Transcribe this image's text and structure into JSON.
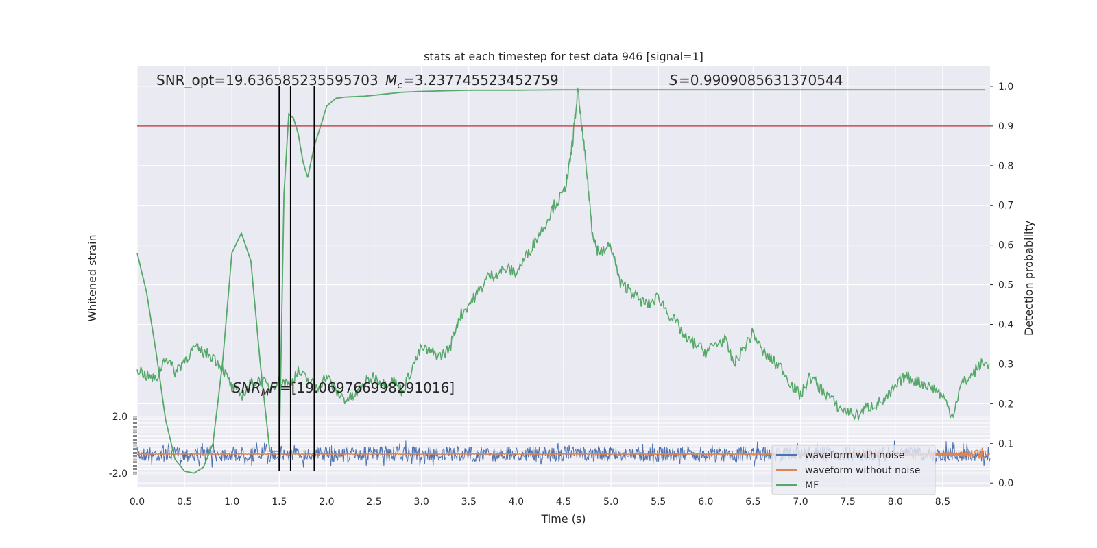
{
  "chart_data": {
    "type": "line",
    "title": "stats at each timestep for test data 946 [signal=1]",
    "xlabel": "Time (s)",
    "ylabel_left": "Whitened strain",
    "ylabel_right": "Detection probability",
    "xlim": [
      0,
      9
    ],
    "ylim_right": [
      -0.01,
      1.05
    ],
    "x_ticks": [
      "0.0",
      "0.5",
      "1.0",
      "1.5",
      "2.0",
      "2.5",
      "3.0",
      "3.5",
      "4.0",
      "4.5",
      "5.0",
      "5.5",
      "6.0",
      "6.5",
      "7.0",
      "7.5",
      "8.0",
      "8.5"
    ],
    "y_ticks_right": [
      "0.0",
      "0.1",
      "0.2",
      "0.3",
      "0.4",
      "0.5",
      "0.6",
      "0.7",
      "0.8",
      "0.9",
      "1.0"
    ],
    "left_axis_tick_labels": [
      "2.0",
      "-2.0"
    ],
    "grid": true,
    "legend_position": "lower-right",
    "annotations": {
      "snr_opt": "SNR_opt=19.636585235595703",
      "mc": "=3.237745523452759",
      "s": "=0.9909085631370544",
      "snr_mf": "=[19.069766998291016]"
    },
    "threshold": 0.9,
    "vertical_lines": [
      1.5,
      1.62,
      1.87
    ],
    "series": [
      {
        "name": "waveform with noise",
        "color": "#4c72b0"
      },
      {
        "name": "waveform without noise",
        "color": "#dd8452"
      },
      {
        "name": "MF",
        "color": "#55a868"
      }
    ],
    "prob_coarse": {
      "x": [
        0.0,
        0.1,
        0.2,
        0.3,
        0.4,
        0.5,
        0.6,
        0.7,
        0.8,
        0.9,
        1.0,
        1.1,
        1.2,
        1.3,
        1.4,
        1.5,
        1.55,
        1.6,
        1.65,
        1.7,
        1.75,
        1.8,
        1.87,
        1.95,
        2.0,
        2.1,
        2.2,
        2.4,
        2.6,
        2.8,
        3.0,
        3.5,
        4.0,
        4.5,
        5.0,
        6.0,
        7.0,
        8.0,
        8.95
      ],
      "y": [
        0.58,
        0.48,
        0.33,
        0.16,
        0.06,
        0.03,
        0.025,
        0.04,
        0.1,
        0.3,
        0.58,
        0.63,
        0.56,
        0.3,
        0.08,
        0.08,
        0.73,
        0.93,
        0.92,
        0.88,
        0.81,
        0.77,
        0.85,
        0.91,
        0.95,
        0.97,
        0.973,
        0.975,
        0.98,
        0.985,
        0.987,
        0.99,
        0.99,
        0.991,
        0.991,
        0.991,
        0.991,
        0.991,
        0.991
      ]
    },
    "prob_fine": {
      "x": [
        0.0,
        0.1,
        0.2,
        0.3,
        0.4,
        0.5,
        0.6,
        0.7,
        0.8,
        0.9,
        1.0,
        1.1,
        1.2,
        1.3,
        1.4,
        1.5,
        1.6,
        1.7,
        1.8,
        1.9,
        2.0,
        2.1,
        2.2,
        2.3,
        2.4,
        2.5,
        2.6,
        2.7,
        2.8,
        2.9,
        3.0,
        3.1,
        3.2,
        3.3,
        3.4,
        3.5,
        3.6,
        3.7,
        3.8,
        3.9,
        4.0,
        4.1,
        4.2,
        4.3,
        4.4,
        4.5,
        4.55,
        4.6,
        4.65,
        4.7,
        4.75,
        4.8,
        4.85,
        4.9,
        5.0,
        5.1,
        5.2,
        5.3,
        5.4,
        5.5,
        5.6,
        5.7,
        5.8,
        5.9,
        6.0,
        6.1,
        6.2,
        6.3,
        6.4,
        6.5,
        6.6,
        6.7,
        6.8,
        6.9,
        7.0,
        7.1,
        7.2,
        7.3,
        7.4,
        7.5,
        7.6,
        7.7,
        7.8,
        7.9,
        8.0,
        8.1,
        8.2,
        8.3,
        8.4,
        8.5,
        8.6,
        8.7,
        8.8,
        8.9,
        8.99
      ],
      "y": [
        0.29,
        0.27,
        0.26,
        0.32,
        0.28,
        0.31,
        0.34,
        0.33,
        0.32,
        0.29,
        0.24,
        0.22,
        0.25,
        0.26,
        0.24,
        0.26,
        0.25,
        0.28,
        0.26,
        0.24,
        0.27,
        0.23,
        0.21,
        0.22,
        0.25,
        0.27,
        0.25,
        0.26,
        0.23,
        0.29,
        0.34,
        0.33,
        0.32,
        0.34,
        0.42,
        0.45,
        0.48,
        0.52,
        0.53,
        0.54,
        0.53,
        0.57,
        0.61,
        0.65,
        0.7,
        0.73,
        0.78,
        0.87,
        0.99,
        0.88,
        0.77,
        0.64,
        0.59,
        0.58,
        0.6,
        0.5,
        0.49,
        0.46,
        0.45,
        0.47,
        0.43,
        0.4,
        0.36,
        0.35,
        0.33,
        0.35,
        0.36,
        0.3,
        0.34,
        0.38,
        0.33,
        0.31,
        0.29,
        0.25,
        0.22,
        0.27,
        0.24,
        0.22,
        0.19,
        0.18,
        0.17,
        0.19,
        0.2,
        0.21,
        0.24,
        0.27,
        0.26,
        0.25,
        0.24,
        0.22,
        0.17,
        0.25,
        0.27,
        0.3,
        0.3
      ]
    }
  }
}
